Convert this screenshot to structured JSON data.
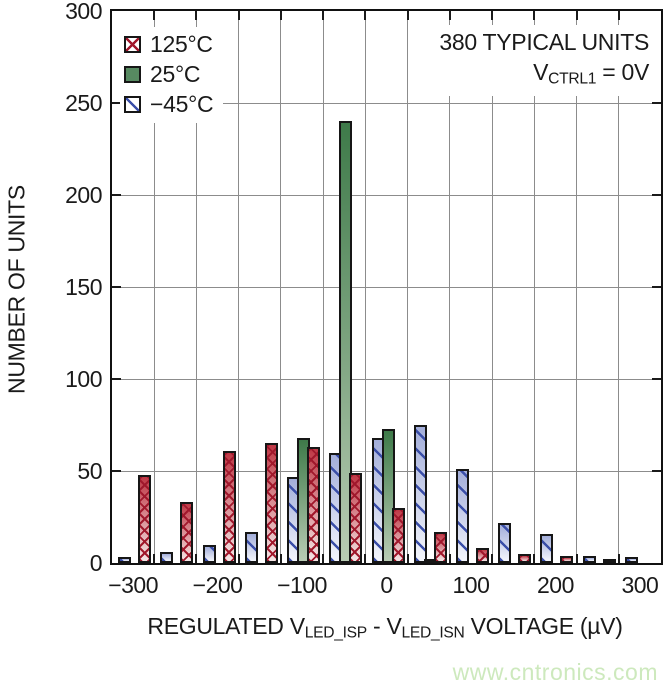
{
  "watermark": {
    "text": "www.cntronics.com",
    "color": "#cde9bd"
  },
  "annotations": {
    "units_note": "380 TYPICAL UNITS",
    "condition_pre": "V",
    "condition_sub": "CTRL1",
    "condition_post": " = 0V"
  },
  "legend": [
    {
      "label": "125°C",
      "swatch": "red-crosshatch"
    },
    {
      "label": "25°C",
      "swatch": "green-solid"
    },
    {
      "label": "−45°C",
      "swatch": "blue-diagonal"
    }
  ],
  "chart_data": {
    "type": "bar",
    "subtype": "histogram",
    "title": "380 TYPICAL UNITS",
    "condition": "VCTRL1 = 0V",
    "ylabel": "NUMBER OF UNITS",
    "xlabel": {
      "pre": "REGULATED V",
      "sub1": "LED_ISP",
      "mid": " - V",
      "sub2": "LED_ISN",
      "post": " VOLTAGE (µV)"
    },
    "xlim": [
      -325,
      325
    ],
    "ylim": [
      0,
      300
    ],
    "grid": true,
    "grid_step_uV": 50,
    "legend_position": "top-left",
    "bin_centers_uV": [
      -300,
      -250,
      -200,
      -150,
      -100,
      -50,
      0,
      50,
      100,
      150,
      200,
      250,
      300
    ],
    "series": [
      {
        "name": "125°C",
        "color": "#a0182c",
        "values": [
          48,
          33,
          61,
          65,
          63,
          49,
          30,
          17,
          8,
          5,
          4,
          1,
          0
        ]
      },
      {
        "name": "25°C",
        "color": "#3e7a49",
        "values": [
          0,
          0,
          0,
          0,
          68,
          240,
          73,
          2,
          0,
          0,
          0,
          0,
          0
        ]
      },
      {
        "name": "−45°C",
        "color": "#3a4ea8",
        "values": [
          3,
          6,
          10,
          17,
          47,
          60,
          68,
          75,
          51,
          22,
          16,
          4,
          3
        ]
      }
    ],
    "x_ticks": [
      {
        "v": -300,
        "label": "−300"
      },
      {
        "v": -200,
        "label": "−200"
      },
      {
        "v": -100,
        "label": "−100"
      },
      {
        "v": 0,
        "label": "0"
      },
      {
        "v": 100,
        "label": "100"
      },
      {
        "v": 200,
        "label": "200"
      },
      {
        "v": 300,
        "label": "300"
      }
    ],
    "y_ticks": [
      {
        "v": 0,
        "label": "0"
      },
      {
        "v": 50,
        "label": "50"
      },
      {
        "v": 100,
        "label": "100"
      },
      {
        "v": 150,
        "label": "150"
      },
      {
        "v": 200,
        "label": "200"
      },
      {
        "v": 250,
        "label": "250"
      },
      {
        "v": 300,
        "label": "300"
      }
    ]
  }
}
